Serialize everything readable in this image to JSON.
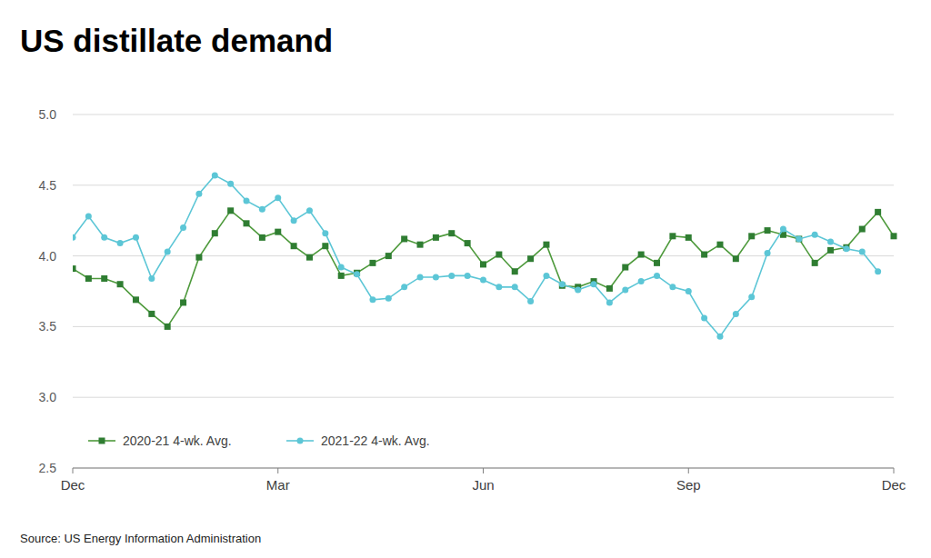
{
  "chart_data": {
    "type": "line",
    "title": "US distillate demand",
    "source": "Source: US Energy Information Administration",
    "x": [
      0,
      1,
      2,
      3,
      4,
      5,
      6,
      7,
      8,
      9,
      10,
      11,
      12,
      13,
      14,
      15,
      16,
      17,
      18,
      19,
      20,
      21,
      22,
      23,
      24,
      25,
      26,
      27,
      28,
      29,
      30,
      31,
      32,
      33,
      34,
      35,
      36,
      37,
      38,
      39,
      40,
      41,
      42,
      43,
      44,
      45,
      46,
      47,
      48,
      49,
      50,
      51,
      52
    ],
    "xlim": [
      0,
      52
    ],
    "xticks": [
      {
        "value": 0,
        "label": "Dec"
      },
      {
        "value": 13,
        "label": "Mar"
      },
      {
        "value": 26,
        "label": "Jun"
      },
      {
        "value": 39,
        "label": "Sep"
      },
      {
        "value": 52,
        "label": "Dec"
      }
    ],
    "ylim": [
      2.5,
      5.0
    ],
    "yticks": [
      2.5,
      {
        "value": 3,
        "label": "3.0"
      },
      3.5,
      {
        "value": 4,
        "label": "4.0"
      },
      4.5,
      {
        "value": 5,
        "label": "5.0"
      }
    ],
    "grid": true,
    "legend": "lower left",
    "series": [
      {
        "name": "2020-21  4-wk. Avg.",
        "color": "#4e9a3c",
        "marker": "square",
        "line_style": "solid",
        "values": [
          3.91,
          3.84,
          3.84,
          3.8,
          3.69,
          3.59,
          3.5,
          3.67,
          3.99,
          4.16,
          4.32,
          4.23,
          4.13,
          4.17,
          4.07,
          3.99,
          4.07,
          3.86,
          3.88,
          3.95,
          4.0,
          4.12,
          4.08,
          4.13,
          4.16,
          4.09,
          3.94,
          4.01,
          3.89,
          3.98,
          4.08,
          3.79,
          3.78,
          3.82,
          3.77,
          3.92,
          4.01,
          3.95,
          4.14,
          4.13,
          4.01,
          4.08,
          3.98,
          4.14,
          4.18,
          4.15,
          4.12,
          3.95,
          4.04,
          4.06,
          4.19,
          4.31,
          4.14
        ]
      },
      {
        "name": "2021-22  4-wk. Avg.",
        "color": "#5cc6d6",
        "marker": "circle",
        "line_style": "solid",
        "values": [
          4.13,
          4.28,
          4.13,
          4.09,
          4.13,
          3.84,
          4.03,
          4.2,
          4.44,
          4.57,
          4.51,
          4.39,
          4.33,
          4.41,
          4.25,
          4.32,
          4.16,
          3.92,
          3.87,
          3.69,
          3.7,
          3.78,
          3.85,
          3.85,
          3.86,
          3.86,
          3.83,
          3.78,
          3.78,
          3.68,
          3.86,
          3.8,
          3.76,
          3.8,
          3.67,
          3.76,
          3.82,
          3.86,
          3.78,
          3.75,
          3.56,
          3.43,
          3.59,
          3.71,
          4.02,
          4.19,
          4.12,
          4.15,
          4.1,
          4.05,
          4.03,
          3.89,
          null
        ]
      }
    ]
  }
}
